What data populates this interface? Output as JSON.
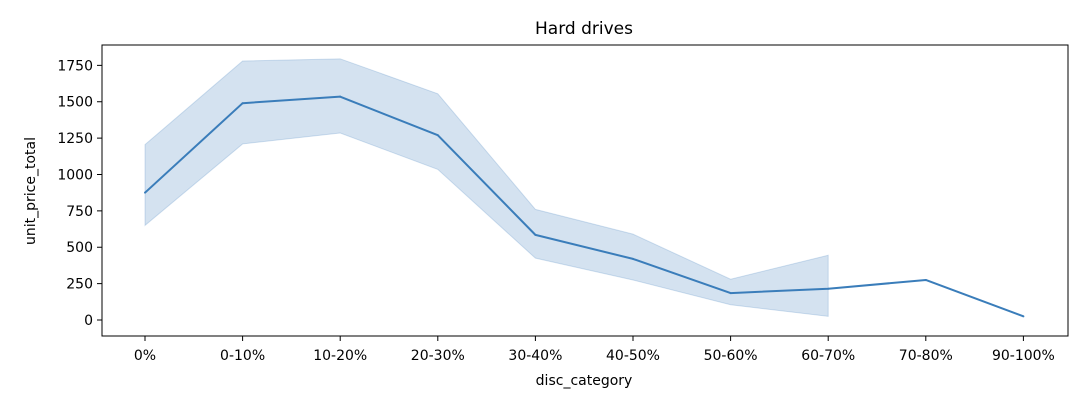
{
  "chart_data": {
    "type": "line",
    "title": "Hard drives",
    "xlabel": "disc_category",
    "ylabel": "unit_price_total",
    "categories": [
      "0%",
      "0-10%",
      "10-20%",
      "20-30%",
      "30-40%",
      "40-50%",
      "50-60%",
      "60-70%",
      "70-80%",
      "90-100%"
    ],
    "series": [
      {
        "values": [
          875,
          1490,
          1535,
          1270,
          585,
          420,
          185,
          215,
          275,
          25
        ],
        "ci_low": [
          650,
          1210,
          1285,
          1035,
          425,
          275,
          105,
          25,
          null,
          null
        ],
        "ci_high": [
          1205,
          1780,
          1795,
          1555,
          760,
          590,
          280,
          445,
          null,
          null
        ]
      }
    ],
    "yticks": [
      0,
      250,
      500,
      750,
      1000,
      1250,
      1500,
      1750
    ],
    "ylim": [
      -110,
      1890
    ],
    "grid": false,
    "colors": {
      "line": "#3a7dba",
      "band": "#3a7dba"
    }
  }
}
